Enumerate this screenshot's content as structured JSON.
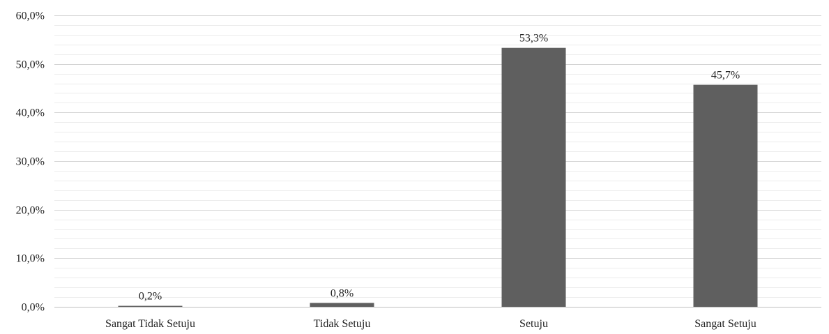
{
  "chart_data": {
    "type": "bar",
    "categories": [
      "Sangat Tidak Setuju",
      "Tidak Setuju",
      "Setuju",
      "Sangat Setuju"
    ],
    "values": [
      0.2,
      0.8,
      53.3,
      45.7
    ],
    "value_labels": [
      "0,2%",
      "0,8%",
      "53,3%",
      "45,7%"
    ],
    "ylim": [
      0,
      60
    ],
    "yticks": [
      0,
      10,
      20,
      30,
      40,
      50,
      60
    ],
    "ytick_labels": [
      "0,0%",
      "10,0%",
      "20,0%",
      "30,0%",
      "40,0%",
      "50,0%",
      "60,0%"
    ],
    "grid": true,
    "minor_grid": true,
    "bar_color": "#5f5f5f",
    "major_grid_color": "#d4d4d4",
    "minor_grid_color": "#ececec",
    "title": "",
    "xlabel": "",
    "ylabel": ""
  }
}
